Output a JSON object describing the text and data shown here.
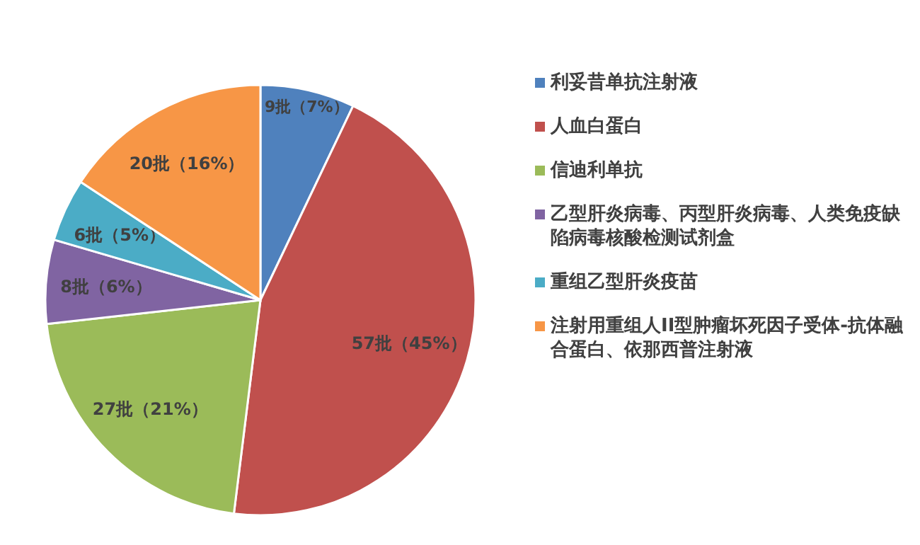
{
  "chart_data": {
    "type": "pie",
    "categories": [
      "利妥昔单抗注射液",
      "人血白蛋白",
      "信迪利单抗",
      "乙型肝炎病毒、丙型肝炎病毒、人类免疫缺陷病毒核酸检测试剂盒",
      "重组乙型肝炎疫苗",
      "注射用重组人II型肿瘤坏死因子受体-抗体融合蛋白、依那西普注射液"
    ],
    "values": [
      9,
      57,
      27,
      8,
      6,
      20
    ],
    "value_labels": [
      "9批（7%）",
      "57批（45%）",
      "27批（21%）",
      "8批（6%）",
      "6批（5%）",
      "20批（16%）"
    ],
    "colors": [
      "#4f81bd",
      "#c0504d",
      "#9bbb59",
      "#8064a2",
      "#4bacc6",
      "#f79646"
    ],
    "legend": "right"
  }
}
